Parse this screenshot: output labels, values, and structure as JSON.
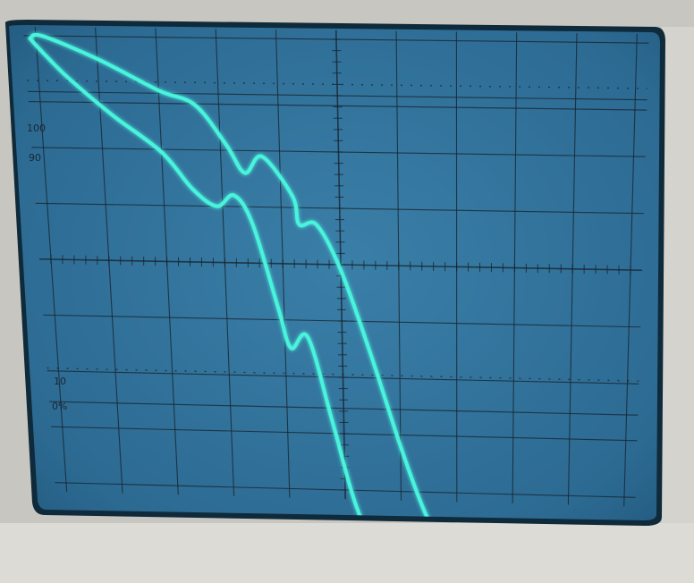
{
  "graticule": {
    "labels": {
      "top": "100",
      "ninety": "90",
      "ten": "10",
      "zero": "0%"
    }
  },
  "colors": {
    "bezel": "#d4d3cd",
    "bezel_shadow": "#a8a7a1",
    "screen": "#2f6f97",
    "screen_edge": "#0f2a3a",
    "grid": "#17202a",
    "trace": "#49f3dc",
    "label": "#1c2630"
  },
  "traces": [
    {
      "name": "",
      "points": [
        [
          -0.1,
          0.05
        ],
        [
          0.1,
          0.3
        ],
        [
          0.5,
          0.75
        ],
        [
          1.2,
          1.4
        ],
        [
          2,
          2.05
        ],
        [
          2.5,
          2.7
        ],
        [
          2.9,
          3.0
        ],
        [
          3.2,
          2.8
        ],
        [
          3.5,
          3.3
        ],
        [
          3.9,
          4.8
        ],
        [
          4.1,
          5.5
        ],
        [
          4.4,
          5.3
        ],
        [
          4.8,
          6.8
        ],
        [
          5.2,
          8.3
        ],
        [
          5.6,
          9.0
        ],
        [
          6.5,
          9.0
        ],
        [
          9.8,
          9.1
        ]
      ]
    },
    {
      "name": "",
      "points": [
        [
          -0.1,
          0.05
        ],
        [
          0.1,
          0.0
        ],
        [
          1,
          0.4
        ],
        [
          2,
          0.95
        ],
        [
          2.6,
          1.2
        ],
        [
          3.1,
          1.9
        ],
        [
          3.4,
          2.4
        ],
        [
          3.7,
          2.1
        ],
        [
          4.2,
          2.8
        ],
        [
          4.3,
          3.3
        ],
        [
          4.6,
          3.3
        ],
        [
          5.0,
          4.1
        ],
        [
          5.5,
          5.6
        ],
        [
          6.0,
          7.2
        ],
        [
          6.4,
          8.3
        ],
        [
          6.8,
          9.1
        ]
      ]
    }
  ]
}
